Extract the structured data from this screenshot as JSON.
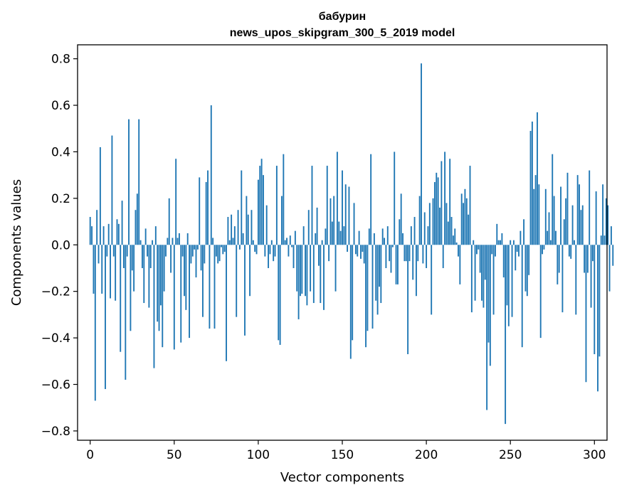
{
  "chart_data": {
    "type": "bar",
    "title_line1": "бабурин",
    "title_line2": "news_upos_skipgram_300_5_2019 model",
    "xlabel": "Vector components",
    "ylabel": "Components values",
    "xlim": [
      -7.5,
      307.5
    ],
    "ylim": [
      -0.84,
      0.86
    ],
    "xticks": [
      0,
      50,
      100,
      150,
      200,
      250,
      300
    ],
    "xtick_labels": [
      "0",
      "50",
      "100",
      "150",
      "200",
      "250",
      "300"
    ],
    "yticks": [
      -0.8,
      -0.6,
      -0.4,
      -0.2,
      0.0,
      0.2,
      0.4,
      0.6,
      0.8
    ],
    "ytick_labels": [
      "−0.8",
      "−0.6",
      "−0.4",
      "−0.2",
      "0.0",
      "0.2",
      "0.4",
      "0.6",
      "0.8"
    ],
    "bar_color": "#1f77b4",
    "values": [
      0.12,
      0.08,
      -0.21,
      -0.67,
      0.15,
      -0.08,
      0.42,
      -0.21,
      0.08,
      -0.62,
      -0.05,
      0.09,
      -0.23,
      0.47,
      -0.05,
      -0.24,
      0.11,
      0.09,
      -0.46,
      0.19,
      -0.1,
      -0.58,
      -0.05,
      0.54,
      -0.37,
      -0.11,
      -0.2,
      0.15,
      0.22,
      0.54,
      0.02,
      -0.1,
      -0.25,
      0.07,
      -0.05,
      -0.27,
      -0.1,
      0.02,
      -0.53,
      0.08,
      -0.33,
      -0.37,
      -0.26,
      -0.44,
      -0.2,
      -0.05,
      0.03,
      0.2,
      -0.12,
      0.03,
      -0.45,
      0.37,
      0.03,
      0.05,
      -0.42,
      -0.05,
      -0.22,
      -0.28,
      0.05,
      -0.4,
      -0.08,
      -0.05,
      -0.02,
      -0.14,
      -0.02,
      0.29,
      -0.11,
      -0.31,
      -0.08,
      0.27,
      0.32,
      -0.36,
      0.6,
      0.03,
      -0.36,
      -0.05,
      -0.08,
      -0.07,
      -0.01,
      -0.04,
      -0.03,
      -0.5,
      0.12,
      0.02,
      0.13,
      0.03,
      0.08,
      -0.31,
      0.15,
      -0.02,
      0.32,
      0.05,
      -0.39,
      0.21,
      0.13,
      -0.22,
      0.15,
      0.02,
      -0.03,
      -0.04,
      0.28,
      0.34,
      0.37,
      0.3,
      -0.05,
      0.17,
      -0.1,
      -0.04,
      0.02,
      -0.07,
      -0.05,
      0.34,
      -0.41,
      -0.43,
      0.21,
      0.39,
      0.02,
      0.03,
      -0.05,
      0.04,
      -0.01,
      -0.1,
      0.06,
      -0.2,
      -0.32,
      -0.22,
      -0.21,
      0.08,
      -0.22,
      -0.26,
      0.15,
      -0.2,
      0.34,
      -0.25,
      0.05,
      0.16,
      -0.09,
      -0.25,
      0.02,
      -0.28,
      0.07,
      0.34,
      -0.07,
      0.2,
      0.1,
      0.21,
      -0.2,
      0.4,
      0.1,
      0.06,
      0.32,
      0.08,
      0.26,
      -0.03,
      0.25,
      -0.49,
      -0.41,
      0.18,
      -0.04,
      -0.05,
      0.06,
      -0.06,
      -0.03,
      -0.08,
      -0.44,
      -0.37,
      0.07,
      0.39,
      -0.36,
      0.05,
      -0.24,
      -0.3,
      -0.18,
      -0.25,
      0.07,
      0.03,
      -0.1,
      0.08,
      -0.07,
      -0.12,
      -0.01,
      0.4,
      -0.17,
      -0.17,
      0.11,
      0.22,
      0.05,
      -0.07,
      -0.07,
      -0.47,
      -0.07,
      0.08,
      -0.15,
      0.12,
      -0.22,
      -0.07,
      0.21,
      0.78,
      -0.08,
      0.14,
      -0.1,
      0.08,
      0.18,
      -0.3,
      0.2,
      0.27,
      0.31,
      0.29,
      0.16,
      0.36,
      -0.1,
      0.4,
      0.18,
      0.1,
      0.37,
      0.12,
      0.04,
      0.07,
      0.01,
      -0.05,
      -0.17,
      0.22,
      0.18,
      0.24,
      0.2,
      0.13,
      0.34,
      -0.29,
      0.02,
      -0.24,
      -0.04,
      -0.02,
      -0.12,
      -0.24,
      -0.27,
      -0.15,
      -0.71,
      -0.42,
      -0.52,
      -0.04,
      -0.3,
      -0.05,
      0.09,
      0.02,
      0.02,
      0.05,
      -0.14,
      -0.77,
      -0.26,
      -0.35,
      0.02,
      -0.31,
      0.02,
      -0.11,
      -0.03,
      -0.05,
      0.06,
      -0.44,
      0.11,
      -0.2,
      -0.22,
      -0.13,
      0.49,
      0.53,
      0.24,
      0.3,
      0.57,
      0.26,
      -0.4,
      -0.04,
      -0.02,
      0.24,
      0.06,
      0.14,
      0.02,
      0.39,
      0.21,
      0.06,
      -0.17,
      -0.12,
      0.25,
      -0.29,
      0.11,
      0.2,
      0.31,
      -0.05,
      -0.06,
      0.17,
      0.02,
      -0.3,
      0.3,
      0.26,
      0.15,
      0.17,
      -0.12,
      -0.59,
      -0.12,
      0.32,
      -0.27,
      -0.07,
      -0.47,
      0.23,
      -0.63,
      -0.48,
      0.04,
      0.26,
      0.04,
      0.2,
      0.17,
      -0.2,
      0.08,
      -0.09
    ]
  }
}
